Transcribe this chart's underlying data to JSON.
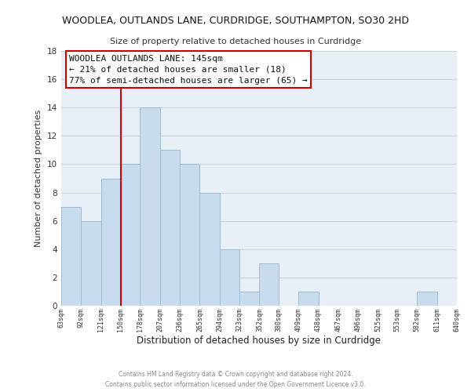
{
  "title": "WOODLEA, OUTLANDS LANE, CURDRIDGE, SOUTHAMPTON, SO30 2HD",
  "subtitle": "Size of property relative to detached houses in Curdridge",
  "xlabel": "Distribution of detached houses by size in Curdridge",
  "ylabel": "Number of detached properties",
  "bar_color": "#c8dced",
  "bar_edge_color": "#9bbdd4",
  "background_color": "#ffffff",
  "plot_bg_color": "#e8eff7",
  "grid_color": "#c8d4e0",
  "bins": [
    63,
    92,
    121,
    150,
    178,
    207,
    236,
    265,
    294,
    323,
    352,
    380,
    409,
    438,
    467,
    496,
    525,
    553,
    582,
    611,
    640
  ],
  "bin_labels": [
    "63sqm",
    "92sqm",
    "121sqm",
    "150sqm",
    "178sqm",
    "207sqm",
    "236sqm",
    "265sqm",
    "294sqm",
    "323sqm",
    "352sqm",
    "380sqm",
    "409sqm",
    "438sqm",
    "467sqm",
    "496sqm",
    "525sqm",
    "553sqm",
    "582sqm",
    "611sqm",
    "640sqm"
  ],
  "counts": [
    7,
    6,
    9,
    10,
    14,
    11,
    10,
    8,
    4,
    1,
    3,
    0,
    1,
    0,
    0,
    0,
    0,
    0,
    1,
    0
  ],
  "ylim": [
    0,
    18
  ],
  "yticks": [
    0,
    2,
    4,
    6,
    8,
    10,
    12,
    14,
    16,
    18
  ],
  "vline_x": 150,
  "vline_color": "#cc0000",
  "annotation_title": "WOODLEA OUTLANDS LANE: 145sqm",
  "annotation_line1": "← 21% of detached houses are smaller (18)",
  "annotation_line2": "77% of semi-detached houses are larger (65) →",
  "annotation_box_color": "#ffffff",
  "annotation_box_edge": "#cc0000",
  "footer_line1": "Contains HM Land Registry data © Crown copyright and database right 2024.",
  "footer_line2": "Contains public sector information licensed under the Open Government Licence v3.0."
}
